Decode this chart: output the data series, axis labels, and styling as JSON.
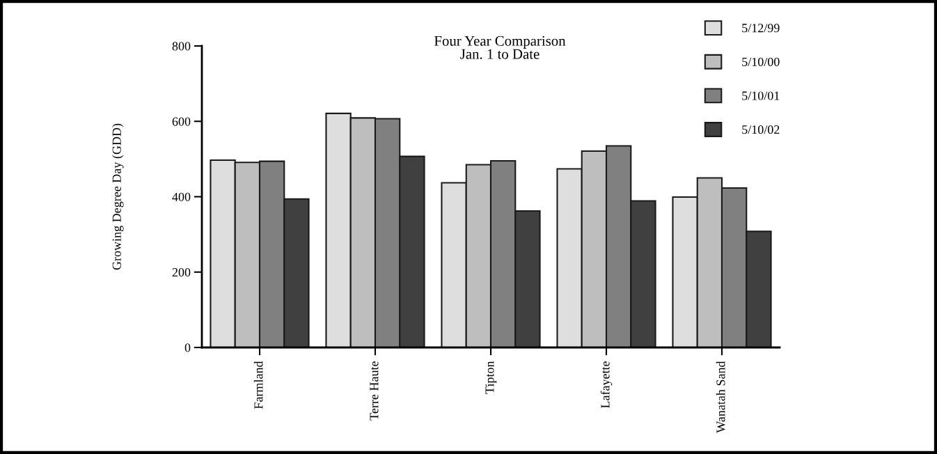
{
  "chart_data": {
    "type": "bar",
    "title": "Four Year Comparison\nJan. 1 to Date",
    "ylabel": "Growing Degree Day (GDD)",
    "categories": [
      "Farmland",
      "Terre Haute",
      "Tipton",
      "Lafayette",
      "Wanatah Sand"
    ],
    "series": [
      {
        "name": "5/12/99",
        "color": "#dedede",
        "values": [
          497,
          621,
          437,
          474,
          399
        ]
      },
      {
        "name": "5/10/00",
        "color": "#bebebe",
        "values": [
          491,
          609,
          485,
          521,
          450
        ]
      },
      {
        "name": "5/10/01",
        "color": "#808080",
        "values": [
          494,
          607,
          495,
          535,
          423
        ]
      },
      {
        "name": "5/10/02",
        "color": "#404040",
        "values": [
          394,
          507,
          362,
          389,
          308
        ]
      }
    ],
    "ylim": [
      0,
      800
    ],
    "yticks": [
      0,
      200,
      400,
      600,
      800
    ],
    "grid": false,
    "legend": "top right"
  }
}
